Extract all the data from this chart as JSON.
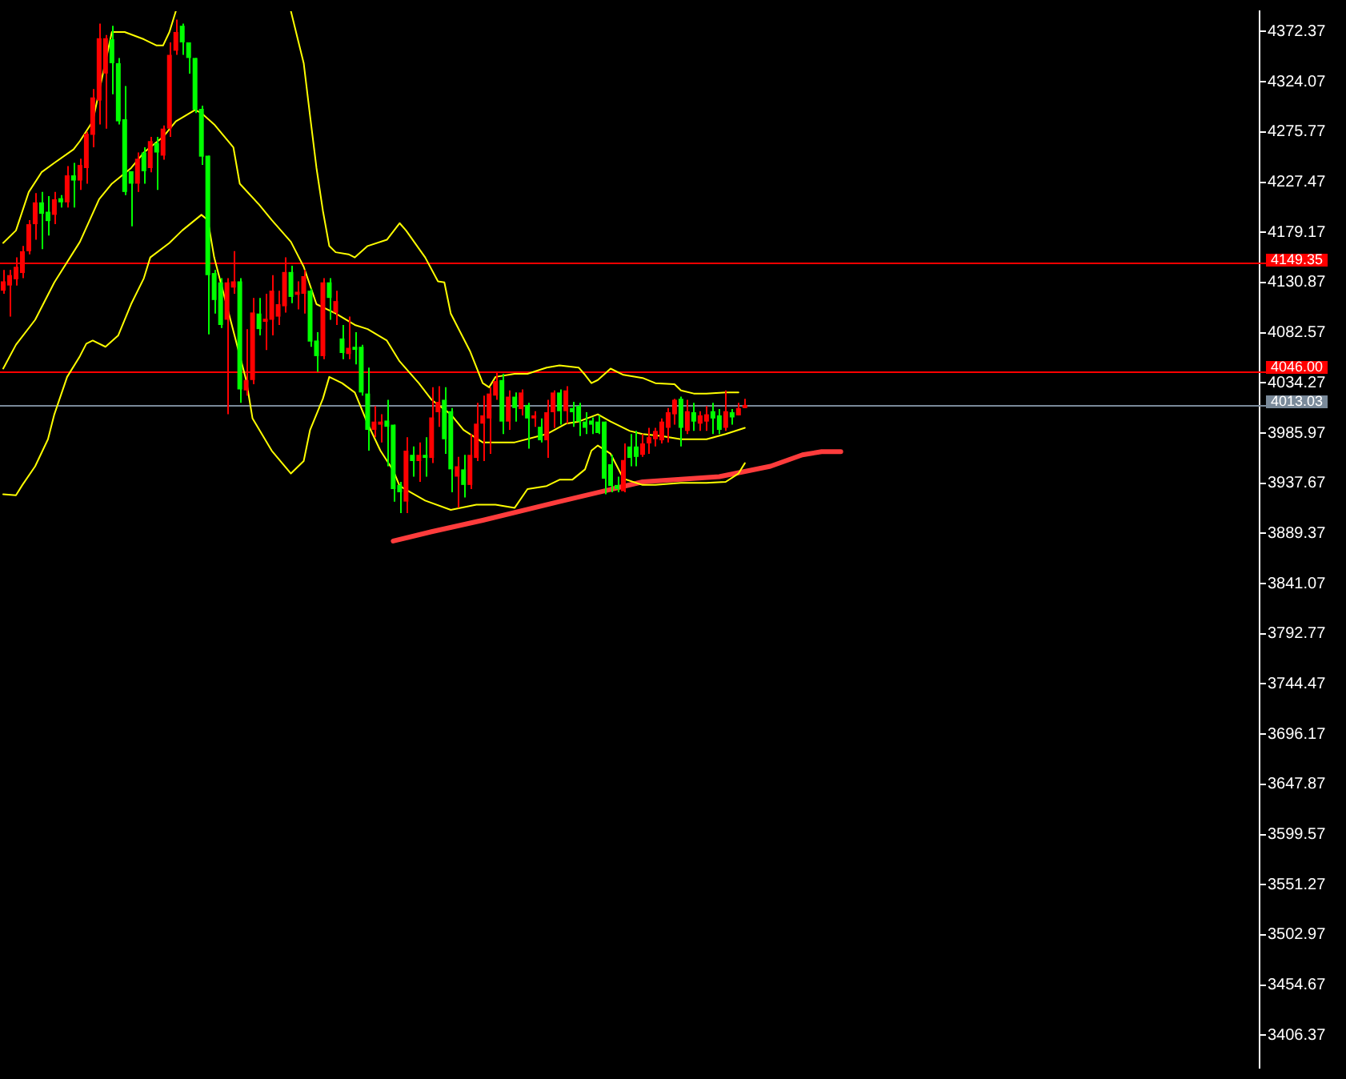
{
  "chart_data": {
    "type": "candlestick",
    "categories": [
      null,
      null,
      null,
      null,
      null,
      null,
      null,
      null,
      null,
      null,
      null,
      null,
      null,
      null,
      null,
      null,
      null,
      null,
      null,
      null,
      null,
      null,
      null,
      null,
      null,
      null,
      null,
      null,
      null,
      null,
      null,
      null,
      null,
      null,
      null,
      null,
      null,
      null,
      null,
      null,
      null,
      null,
      null,
      null,
      null,
      null,
      null,
      null,
      null,
      null,
      null,
      null,
      null,
      null,
      null,
      null,
      null,
      null,
      null,
      null,
      null,
      null,
      null,
      null,
      null,
      null,
      null,
      null,
      null,
      null,
      null,
      null,
      null,
      null,
      null,
      null,
      null,
      null,
      null,
      null,
      null,
      null,
      null,
      null,
      null,
      null,
      null,
      null,
      null,
      null,
      null,
      null,
      null,
      null,
      null,
      null,
      null,
      null,
      null,
      null,
      null,
      null,
      null,
      null,
      null,
      null,
      null,
      null,
      null,
      null,
      null,
      null,
      null,
      null,
      null,
      null,
      null,
      null,
      null,
      null,
      null,
      null,
      null,
      null,
      null,
      null,
      null,
      null,
      null,
      null,
      null,
      null,
      null,
      null,
      null,
      null,
      null,
      null,
      null,
      null,
      null,
      null,
      null,
      null,
      null,
      null,
      null,
      null,
      null,
      null,
      null,
      null,
      null,
      null,
      null,
      null,
      null,
      null,
      null,
      null,
      null,
      null,
      null,
      null,
      null,
      null,
      null,
      null,
      null,
      null,
      null,
      null,
      null,
      null,
      null,
      null,
      null,
      null,
      null,
      null,
      null,
      null,
      null,
      null,
      null,
      null,
      null,
      null,
      null,
      null,
      null,
      null,
      null,
      null,
      null,
      null,
      null
    ],
    "ohlc": [
      [
        4123,
        4143,
        4120,
        4132
      ],
      [
        4128,
        4143,
        4098,
        4138
      ],
      [
        4134,
        4155,
        4128,
        4146
      ],
      [
        4140,
        4166,
        4135,
        4161
      ],
      [
        4161,
        4191,
        4158,
        4187
      ],
      [
        4187,
        4217,
        4172,
        4208
      ],
      [
        4208,
        4218,
        4163,
        4197
      ],
      [
        4199,
        4214,
        4176,
        4190
      ],
      [
        4196,
        4218,
        4187,
        4211
      ],
      [
        4212,
        4215,
        4203,
        4208
      ],
      [
        4208,
        4243,
        4203,
        4234
      ],
      [
        4234,
        4246,
        4203,
        4229
      ],
      [
        4229,
        4250,
        4220,
        4244
      ],
      [
        4241,
        4276,
        4226,
        4274
      ],
      [
        4273,
        4317,
        4261,
        4309
      ],
      [
        4306,
        4380,
        4283,
        4366
      ],
      [
        4332,
        4369,
        4279,
        4366
      ],
      [
        4365,
        4378,
        4312,
        4342
      ],
      [
        4342,
        4347,
        4283,
        4286
      ],
      [
        4288,
        4320,
        4215,
        4218
      ],
      [
        4238,
        4238,
        4185,
        4226
      ],
      [
        4226,
        4256,
        4218,
        4250
      ],
      [
        4256,
        4261,
        4226,
        4238
      ],
      [
        4241,
        4271,
        4237,
        4267
      ],
      [
        4265,
        4271,
        4220,
        4256
      ],
      [
        4253,
        4282,
        4249,
        4279
      ],
      [
        4279,
        4362,
        4271,
        4350
      ],
      [
        4354,
        4384,
        4350,
        4372
      ],
      [
        4378,
        4380,
        4350,
        4362
      ],
      [
        4362,
        4362,
        4332,
        4347
      ],
      [
        4347,
        4347,
        4294,
        4297
      ],
      [
        4298,
        4301,
        4244,
        4252
      ],
      [
        4253,
        4253,
        4081,
        4138
      ],
      [
        4140,
        4143,
        4101,
        4114
      ],
      [
        4131,
        4135,
        4087,
        4090
      ],
      [
        4095,
        4135,
        4004,
        4131
      ],
      [
        4126,
        4161,
        4120,
        4132
      ],
      [
        4132,
        4135,
        4015,
        4028
      ],
      [
        4027,
        4086,
        4022,
        4037
      ],
      [
        4037,
        4116,
        4033,
        4102
      ],
      [
        4101,
        4116,
        4080,
        4086
      ],
      [
        4093,
        4120,
        4066,
        4096
      ],
      [
        4095,
        4138,
        4080,
        4123
      ],
      [
        4098,
        4123,
        4090,
        4110
      ],
      [
        4108,
        4155,
        4102,
        4141
      ],
      [
        4141,
        4147,
        4111,
        4117
      ],
      [
        4119,
        4132,
        4105,
        4122
      ],
      [
        4120,
        4143,
        4101,
        4137
      ],
      [
        4123,
        4125,
        4069,
        4074
      ],
      [
        4075,
        4083,
        4045,
        4060
      ],
      [
        4060,
        4135,
        4057,
        4131
      ],
      [
        4131,
        4135,
        4095,
        4116
      ],
      [
        4102,
        4123,
        4090,
        4113
      ],
      [
        4077,
        4090,
        4057,
        4063
      ],
      [
        4062,
        4098,
        4057,
        4068
      ],
      [
        4069,
        4083,
        4052,
        4066
      ],
      [
        4069,
        4071,
        4022,
        4025
      ],
      [
        4024,
        4049,
        3969,
        3989
      ],
      [
        3989,
        4012,
        3982,
        3997
      ],
      [
        3994,
        4004,
        3977,
        3997
      ],
      [
        3998,
        4018,
        3954,
        3992
      ],
      [
        3994,
        3994,
        3920,
        3932
      ],
      [
        3936,
        3939,
        3909,
        3929
      ],
      [
        3920,
        3982,
        3909,
        3969
      ],
      [
        3965,
        3973,
        3944,
        3959
      ],
      [
        3959,
        3977,
        3939,
        3965
      ],
      [
        3965,
        3982,
        3944,
        3962
      ],
      [
        3962,
        4030,
        3957,
        4001
      ],
      [
        4006,
        4031,
        3992,
        4016
      ],
      [
        4018,
        4030,
        3966,
        3980
      ],
      [
        4007,
        4010,
        3929,
        3951
      ],
      [
        3944,
        3963,
        3914,
        3954
      ],
      [
        3951,
        3965,
        3924,
        3936
      ],
      [
        3936,
        3985,
        3932,
        3965
      ],
      [
        3962,
        4015,
        3959,
        3995
      ],
      [
        3995,
        4022,
        3959,
        4003
      ],
      [
        4000,
        4030,
        3966,
        4024
      ],
      [
        4022,
        4045,
        4018,
        4036
      ],
      [
        4037,
        4043,
        3985,
        3997
      ],
      [
        3997,
        4027,
        3989,
        4021
      ],
      [
        4021,
        4025,
        3997,
        4010
      ],
      [
        4009,
        4028,
        4003,
        4025
      ],
      [
        4013,
        4015,
        3971,
        4000
      ],
      [
        4000,
        4007,
        3992,
        4003
      ],
      [
        3992,
        4000,
        3977,
        3979
      ],
      [
        3979,
        4018,
        3962,
        4006
      ],
      [
        4006,
        4027,
        3991,
        4025
      ],
      [
        4025,
        4028,
        3994,
        4007
      ],
      [
        4007,
        4031,
        3995,
        4027
      ],
      [
        4010,
        4016,
        3992,
        4006
      ],
      [
        4012,
        4015,
        3983,
        3997
      ],
      [
        3997,
        4006,
        3985,
        3991
      ],
      [
        3998,
        4001,
        3985,
        3994
      ],
      [
        3997,
        4003,
        3985,
        3986
      ],
      [
        3997,
        3997,
        3927,
        3942
      ],
      [
        3956,
        3965,
        3929,
        3935
      ],
      [
        3936,
        3944,
        3929,
        3932
      ],
      [
        3930,
        3976,
        3929,
        3960
      ],
      [
        3973,
        3985,
        3954,
        3962
      ],
      [
        3973,
        3988,
        3954,
        3963
      ],
      [
        3965,
        3985,
        3963,
        3976
      ],
      [
        3976,
        3991,
        3966,
        3982
      ],
      [
        3980,
        3991,
        3973,
        3988
      ],
      [
        3979,
        4000,
        3976,
        3997
      ],
      [
        3991,
        4010,
        3977,
        4006
      ],
      [
        4004,
        4019,
        3994,
        4018
      ],
      [
        4019,
        4021,
        3973,
        3991
      ],
      [
        3988,
        4018,
        3985,
        4007
      ],
      [
        4006,
        4015,
        3988,
        3997
      ],
      [
        3995,
        4007,
        3988,
        4003
      ],
      [
        3997,
        4012,
        3988,
        4004
      ],
      [
        4007,
        4015,
        3985,
        4000
      ],
      [
        4003,
        4009,
        3985,
        3989
      ],
      [
        3991,
        4027,
        3988,
        4007
      ],
      [
        4006,
        4009,
        3994,
        4001
      ],
      [
        4003,
        4015,
        4003,
        4010
      ],
      [
        4010,
        4019,
        4010,
        4013
      ],
      null,
      null,
      null,
      null,
      null,
      null,
      null,
      null,
      null,
      null,
      null,
      null,
      null,
      null,
      null,
      null,
      null,
      null,
      null,
      null,
      null,
      null,
      null,
      null,
      null,
      null,
      null,
      null,
      null,
      null,
      null,
      null,
      null,
      null,
      null,
      null,
      null,
      null,
      null,
      null,
      null,
      null,
      null,
      null,
      null,
      null,
      null,
      null,
      null,
      null,
      null,
      null,
      null,
      null,
      null,
      null,
      null,
      null,
      null,
      null,
      null,
      null,
      null,
      null,
      null,
      null,
      null,
      null,
      null,
      null,
      null,
      null,
      null,
      null,
      null,
      null,
      null,
      null,
      null,
      null
    ],
    "colors": [
      "#ff0000",
      "#ff0000",
      "#ff0000",
      "#ff0000",
      "#ff0000",
      "#ff0000",
      "#00ff00",
      "#00ff00",
      "#ff0000",
      "#00ff00",
      "#ff0000",
      "#00ff00",
      "#ff0000",
      "#ff0000",
      "#ff0000",
      "#ff0000",
      "#ff0000",
      "#00ff00",
      "#00ff00",
      "#00ff00",
      "#00ff00",
      "#ff0000",
      "#00ff00",
      "#ff0000",
      "#00ff00",
      "#ff0000",
      "#ff0000",
      "#ff0000",
      "#00ff00",
      "#00ff00",
      "#00ff00",
      "#00ff00",
      "#00ff00",
      "#00ff00",
      "#00ff00",
      "#ff0000",
      "#ff0000",
      "#00ff00",
      "#ff0000",
      "#ff0000",
      "#00ff00",
      "#ff0000",
      "#ff0000",
      "#ff0000",
      "#ff0000",
      "#00ff00",
      "#ff0000",
      "#ff0000",
      "#00ff00",
      "#00ff00",
      "#ff0000",
      "#00ff00",
      "#ff0000",
      "#00ff00",
      "#ff0000",
      "#00ff00",
      "#00ff00",
      "#00ff00",
      "#ff0000",
      "#ff0000",
      "#00ff00",
      "#00ff00",
      "#00ff00",
      "#ff0000",
      "#00ff00",
      "#ff0000",
      "#00ff00",
      "#ff0000",
      "#ff0000",
      "#00ff00",
      "#00ff00",
      "#ff0000",
      "#00ff00",
      "#ff0000",
      "#ff0000",
      "#ff0000",
      "#ff0000",
      "#ff0000",
      "#00ff00",
      "#ff0000",
      "#00ff00",
      "#ff0000",
      "#00ff00",
      "#ff0000",
      "#00ff00",
      "#ff0000",
      "#ff0000",
      "#00ff00",
      "#ff0000",
      "#00ff00",
      "#00ff00",
      "#00ff00",
      "#00ff00",
      "#00ff00",
      "#00ff00",
      "#00ff00",
      "#00ff00",
      "#ff0000",
      "#00ff00",
      "#00ff00",
      "#ff0000",
      "#ff0000",
      "#ff0000",
      "#ff0000",
      "#ff0000",
      "#ff0000",
      "#00ff00",
      "#ff0000",
      "#00ff00",
      "#ff0000",
      "#ff0000",
      "#00ff00",
      "#00ff00",
      "#ff0000",
      "#00ff00",
      "#ff0000",
      "#ff0000",
      null,
      null,
      null,
      null,
      null,
      null,
      null,
      null,
      null,
      null,
      null,
      null,
      null,
      null,
      null,
      null,
      null,
      null,
      null,
      null,
      null,
      null,
      null,
      null,
      null,
      null,
      null,
      null,
      null,
      null,
      null,
      null,
      null,
      null,
      null,
      null,
      null,
      null,
      null,
      null,
      null,
      null,
      null,
      null,
      null,
      null,
      null,
      null,
      null,
      null,
      null,
      null,
      null,
      null,
      null,
      null,
      null,
      null,
      null,
      null,
      null,
      null,
      null,
      null,
      null,
      null,
      null,
      null,
      null,
      null,
      null,
      null,
      null,
      null,
      null,
      null,
      null,
      null,
      null,
      null
    ],
    "series": [
      {
        "type": "line",
        "color": "#ffff00",
        "values": [
          4169,
          null,
          4181,
          null,
          4218,
          null,
          4237,
          null,
          4246,
          null,
          null,
          4259,
          4267,
          null,
          4286,
          null,
          null,
          4372,
          null,
          4372,
          null,
          null,
          4365,
          null,
          4359,
          4359,
          4372,
          4392,
          null,
          null,
          null,
          null,
          null,
          null,
          null,
          null,
          null,
          null,
          null,
          null,
          null,
          null,
          null,
          null,
          null,
          null,
          null,
          null,
          null,
          null,
          null,
          null,
          null,
          null,
          null,
          null,
          null,
          null,
          null,
          null,
          null,
          null,
          null,
          null,
          null,
          null,
          null,
          null,
          null,
          null,
          null,
          null,
          null,
          null,
          null,
          null,
          null,
          null,
          null,
          null,
          null,
          null,
          null,
          null,
          null,
          null,
          null,
          null,
          null,
          null,
          null,
          null,
          null,
          null,
          null,
          null,
          null,
          null,
          null,
          null,
          null,
          null,
          null,
          null,
          null,
          null,
          null,
          null,
          null,
          null,
          null,
          null,
          null,
          null,
          null,
          null,
          null,
          null,
          null,
          null,
          null,
          null,
          null,
          null,
          null,
          null,
          null,
          null,
          null,
          null,
          null,
          null,
          null,
          null,
          null,
          null,
          null,
          null,
          null,
          null,
          null,
          null,
          null,
          null,
          null,
          null,
          null,
          null,
          null,
          null,
          null,
          null,
          null,
          null,
          null,
          null,
          null,
          null,
          null,
          null,
          null,
          null,
          null,
          null,
          null,
          null,
          null,
          null,
          null,
          null,
          null,
          null,
          null,
          null,
          null,
          null,
          null,
          null,
          null,
          null,
          null,
          null,
          null,
          null,
          null,
          null,
          null,
          null,
          null,
          null,
          null,
          null,
          null,
          null,
          null,
          null,
          null
        ]
      },
      {
        "type": "line",
        "color": "#ffff00",
        "values": [
          null,
          null,
          null,
          null,
          null,
          null,
          null,
          null,
          null,
          null,
          null,
          null,
          null,
          null,
          null,
          null,
          null,
          null,
          null,
          null,
          null,
          null,
          null,
          null,
          null,
          null,
          null,
          null,
          null,
          null,
          null,
          null,
          null,
          null,
          null,
          null,
          null,
          null,
          null,
          null,
          null,
          null,
          null,
          null,
          null,
          4392,
          null,
          4342,
          4291,
          4241,
          4200,
          4166,
          4160,
          null,
          4158,
          4155,
          null,
          4166,
          null,
          null,
          4172,
          null,
          4188,
          4181,
          null,
          null,
          4155,
          null,
          4132,
          4131,
          4101,
          null,
          null,
          4065,
          null,
          4034,
          4030,
          4040,
          null,
          null,
          4043,
          null,
          4043,
          null,
          null,
          4049,
          null,
          4051,
          null,
          null,
          4049,
          4042,
          4034,
          4037,
          null,
          4048,
          null,
          4042,
          null,
          null,
          4039,
          null,
          4034,
          null,
          null,
          4033,
          4027,
          null,
          4024,
          null,
          4024,
          null,
          null,
          4025,
          null,
          4025,
          null,
          null,
          null,
          null,
          null,
          null,
          null,
          null,
          null,
          null,
          null,
          null,
          null,
          null,
          null,
          null,
          null,
          null,
          null,
          null,
          null,
          null,
          null,
          null,
          null,
          null,
          null,
          null,
          null,
          null,
          null,
          null,
          null,
          null,
          null,
          null,
          null,
          null,
          null,
          null,
          null,
          null,
          null,
          null,
          null,
          null,
          null,
          null,
          null,
          null,
          null,
          null,
          null,
          null,
          null,
          null,
          null,
          null,
          null,
          null,
          null,
          null,
          null,
          null,
          null,
          null,
          null,
          null,
          null,
          null,
          null,
          null,
          null,
          null,
          null,
          null,
          null,
          null,
          null,
          null,
          null
        ]
      },
      {
        "type": "line",
        "color": "#ffff00",
        "values": [
          4048,
          null,
          4071,
          null,
          null,
          4095,
          null,
          null,
          4131,
          null,
          null,
          null,
          4170,
          null,
          null,
          4211,
          null,
          4226,
          null,
          null,
          4241,
          null,
          4256,
          null,
          null,
          4271,
          null,
          4286,
          null,
          null,
          4297,
          4294,
          null,
          4283,
          null,
          null,
          4261,
          4226,
          null,
          null,
          4206,
          null,
          4191,
          null,
          null,
          4170,
          null,
          4146,
          null,
          4110,
          null,
          null,
          4101,
          null,
          null,
          4090,
          null,
          4086,
          null,
          null,
          4075,
          null,
          4055,
          null,
          null,
          4034,
          null,
          4018,
          null,
          null,
          4004,
          null,
          3989,
          null,
          null,
          3977,
          null,
          3977,
          null,
          null,
          3977,
          null,
          null,
          null,
          null,
          3985,
          null,
          null,
          3995,
          null,
          3997,
          null,
          null,
          4004,
          null,
          3997,
          null,
          null,
          3988,
          null,
          3985,
          null,
          null,
          3983,
          null,
          null,
          3980,
          null,
          null,
          null,
          3980,
          null,
          null,
          3985,
          null,
          null,
          3991,
          null,
          null,
          null,
          null,
          null,
          null,
          null,
          null,
          null,
          null,
          null,
          null,
          null,
          null,
          null,
          null,
          null,
          null,
          null,
          null,
          null,
          null,
          null,
          null,
          null,
          null,
          null,
          null,
          null,
          null,
          null,
          null,
          null,
          null,
          null,
          null,
          null,
          null,
          null,
          null,
          null,
          null,
          null,
          null,
          null,
          null,
          null,
          null,
          null,
          null,
          null,
          null,
          null,
          null,
          null,
          null,
          null,
          null,
          null,
          null,
          null,
          null,
          null,
          null,
          null,
          null,
          null,
          null,
          null,
          null,
          null,
          null,
          null,
          null,
          null,
          null,
          null,
          null,
          null,
          null
        ]
      },
      {
        "type": "line",
        "color": "#ffff00",
        "values": [
          3927,
          null,
          3926,
          3936,
          null,
          3954,
          null,
          3980,
          4004,
          null,
          4040,
          null,
          4060,
          4072,
          4075,
          null,
          4069,
          null,
          4080,
          null,
          4110,
          null,
          4135,
          4155,
          null,
          null,
          4169,
          null,
          4181,
          null,
          null,
          4196,
          4191,
          4155,
          null,
          null,
          null,
          null,
          4037,
          4000,
          null,
          null,
          3969,
          null,
          null,
          3947,
          null,
          3959,
          3989,
          null,
          4019,
          4040,
          null,
          4034,
          null,
          4025,
          null,
          3995,
          null,
          3969,
          null,
          3950,
          3935,
          null,
          null,
          null,
          3921,
          null,
          null,
          null,
          3912,
          null,
          null,
          null,
          3917,
          null,
          null,
          3917,
          null,
          null,
          3914,
          null,
          3932,
          null,
          null,
          3935,
          null,
          3941,
          null,
          3941,
          null,
          3951,
          3969,
          3974,
          null,
          3966,
          null,
          3942,
          null,
          null,
          3936,
          null,
          3936,
          null,
          null,
          null,
          3938,
          null,
          null,
          null,
          3938,
          null,
          null,
          3939,
          null,
          3947,
          3957,
          null,
          null,
          null,
          null,
          null,
          null,
          null,
          null,
          null,
          null,
          null,
          null,
          null,
          null,
          null,
          null,
          null,
          null,
          null,
          null,
          null,
          null,
          null,
          null,
          null,
          null,
          null,
          null,
          null,
          null,
          null,
          null,
          null,
          null,
          null,
          null,
          null,
          null,
          null,
          null,
          null,
          null,
          null,
          null,
          null,
          null,
          null,
          null,
          null,
          null,
          null,
          null,
          null,
          null,
          null,
          null,
          null,
          null,
          null,
          null,
          null,
          null,
          null,
          null,
          null,
          null,
          null,
          null,
          null,
          null,
          null,
          null,
          null,
          null,
          null,
          null,
          null,
          null,
          null,
          null
        ]
      },
      {
        "type": "line",
        "color": "#ff3c3c",
        "values": [
          null,
          null,
          null,
          null,
          null,
          null,
          null,
          null,
          null,
          null,
          null,
          null,
          null,
          null,
          null,
          null,
          null,
          null,
          null,
          null,
          null,
          null,
          null,
          null,
          null,
          null,
          null,
          null,
          null,
          null,
          null,
          null,
          null,
          null,
          null,
          null,
          null,
          null,
          null,
          null,
          null,
          null,
          null,
          null,
          null,
          null,
          null,
          null,
          null,
          null,
          null,
          null,
          null,
          null,
          null,
          null,
          null,
          null,
          null,
          null,
          null,
          3882,
          null,
          null,
          null,
          null,
          null,
          3891,
          null,
          null,
          null,
          null,
          null,
          null,
          null,
          3902,
          null,
          null,
          null,
          null,
          null,
          null,
          null,
          null,
          null,
          null,
          null,
          3920,
          null,
          null,
          null,
          null,
          null,
          null,
          null,
          null,
          null,
          null,
          null,
          null,
          3939,
          null,
          null,
          null,
          null,
          null,
          null,
          null,
          null,
          null,
          null,
          null,
          3944,
          null,
          null,
          null,
          null,
          null,
          null,
          null,
          3954,
          null,
          null,
          null,
          null,
          3965,
          null,
          null,
          3968,
          null,
          null,
          3968,
          null,
          null,
          null,
          null,
          null,
          null,
          null,
          null,
          null,
          null,
          null,
          null,
          null,
          null,
          null,
          null,
          null,
          null,
          null,
          null,
          null,
          null,
          null,
          null,
          null,
          null,
          null,
          null,
          null,
          null,
          null,
          null,
          null,
          null,
          null,
          null,
          null,
          null,
          null,
          null,
          null,
          null,
          null,
          null,
          null,
          null,
          null,
          null,
          null,
          null,
          null,
          null,
          null,
          null,
          null,
          null,
          null,
          null,
          null,
          null,
          null,
          null,
          null,
          null,
          null
        ]
      }
    ],
    "ylim": [
      3375,
      4392
    ],
    "yticks": [
      4372.37,
      4324.07,
      4275.77,
      4227.47,
      4179.17,
      4130.87,
      4082.57,
      4034.27,
      3985.97,
      3937.67,
      3889.37,
      3841.07,
      3792.77,
      3744.47,
      3696.17,
      3647.87,
      3599.57,
      3551.27,
      3502.97,
      3454.67,
      3406.37
    ],
    "ref_lines": [
      {
        "axis": "y",
        "value": 4149.35,
        "label": "4149.35",
        "color": "#ff0000"
      },
      {
        "axis": "y",
        "value": 4046.0,
        "label": "4046.00",
        "color": "#ff0000"
      },
      {
        "axis": "y",
        "value": 4013.03,
        "label": "4013.03",
        "color": "#7a8a9a"
      }
    ],
    "tick_labels": "y",
    "marker": "none",
    "legend": false,
    "grid": false
  }
}
